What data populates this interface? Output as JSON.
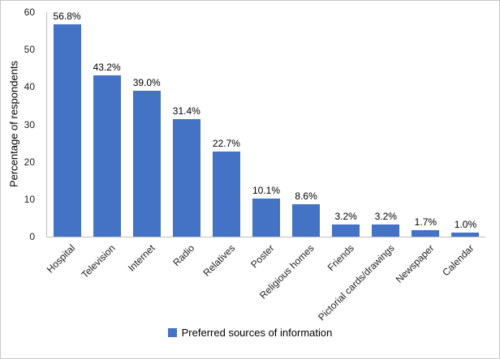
{
  "chart_data": {
    "type": "bar",
    "categories": [
      "Hospital",
      "Television",
      "Internet",
      "Radio",
      "Relatives",
      "Poster",
      "Religious homes",
      "Friends",
      "Pictorial cards/drawings",
      "Newspaper",
      "Calendar"
    ],
    "values": [
      56.8,
      43.2,
      39.0,
      31.4,
      22.7,
      10.1,
      8.6,
      3.2,
      3.2,
      1.7,
      1.0
    ],
    "value_labels": [
      "56.8%",
      "43.2%",
      "39.0%",
      "31.4%",
      "22.7%",
      "10.1%",
      "8.6%",
      "3.2%",
      "3.2%",
      "1.7%",
      "1.0%"
    ],
    "title": "",
    "xlabel": "",
    "ylabel": "Percentage of respondents",
    "ylim": [
      0,
      60
    ],
    "yticks": [
      0,
      10,
      20,
      30,
      40,
      50,
      60
    ],
    "legend": [
      "Preferred sources of information"
    ],
    "legend_position": "bottom",
    "grid": false,
    "bar_color": "#4472C4",
    "axis_line_color": "#BFBFBF"
  }
}
